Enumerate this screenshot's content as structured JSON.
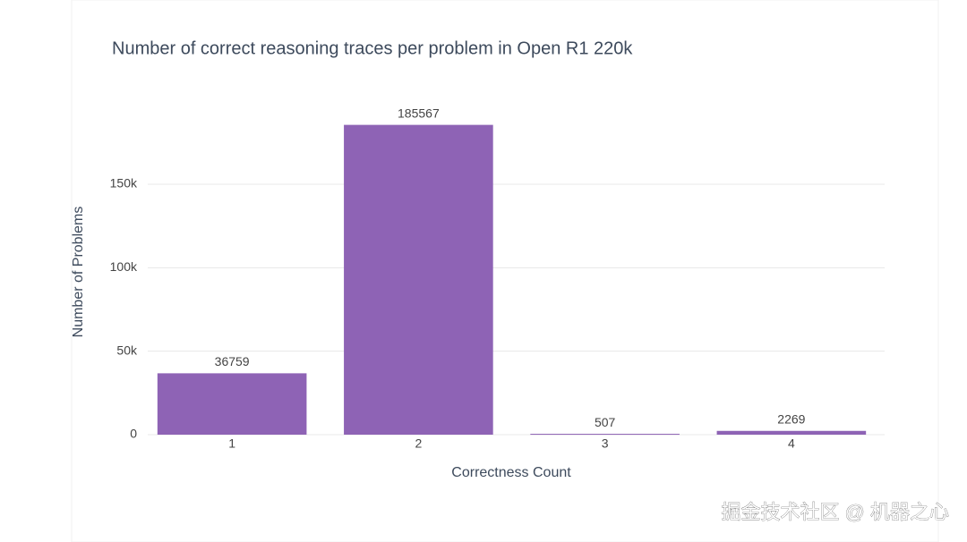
{
  "chart_data": {
    "type": "bar",
    "title": "Number of correct reasoning traces per problem in Open R1 220k",
    "x_label": "Correctness Count",
    "y_label": "Number of Problems",
    "categories": [
      "1",
      "2",
      "3",
      "4"
    ],
    "values": [
      36759,
      185567,
      507,
      2269
    ],
    "color": "#8e63b5",
    "ylim": [
      0,
      195000
    ],
    "yticks": [
      0,
      {
        "value": 50000,
        "label": "50k"
      },
      {
        "value": 100000,
        "label": "100k"
      },
      {
        "value": 150000,
        "label": "150k"
      }
    ],
    "grid": true
  },
  "watermark": "掘金技术社区 @ 机器之心"
}
